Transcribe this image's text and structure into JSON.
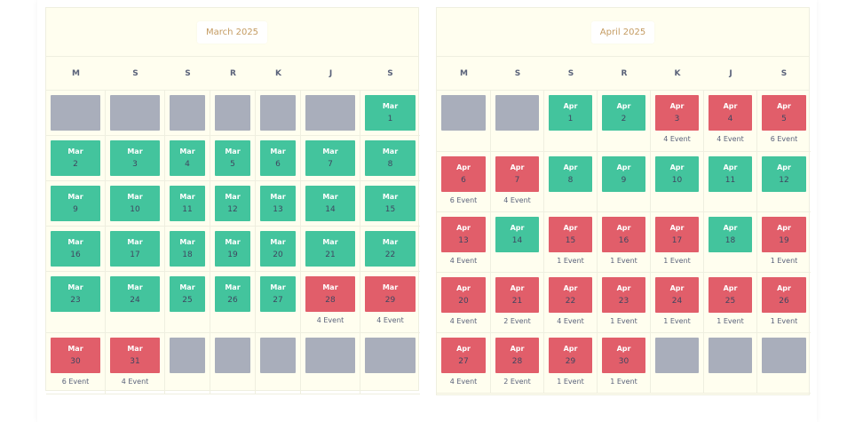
{
  "colors": {
    "available": "#43c49d",
    "busy": "#e15e6a",
    "empty": "#a9aebb",
    "title": "#c49b61"
  },
  "calendars": [
    {
      "title": "March 2025",
      "weekdays": [
        "M",
        "S",
        "S",
        "R",
        "K",
        "J",
        "S"
      ],
      "rows": [
        [
          {
            "empty": true
          },
          {
            "empty": true
          },
          {
            "empty": true
          },
          {
            "empty": true
          },
          {
            "empty": true
          },
          {
            "empty": true
          },
          {
            "mon": "Mar",
            "day": "1",
            "status": "green",
            "events": ""
          }
        ],
        [
          {
            "mon": "Mar",
            "day": "2",
            "status": "green",
            "events": ""
          },
          {
            "mon": "Mar",
            "day": "3",
            "status": "green",
            "events": ""
          },
          {
            "mon": "Mar",
            "day": "4",
            "status": "green",
            "events": ""
          },
          {
            "mon": "Mar",
            "day": "5",
            "status": "green",
            "events": ""
          },
          {
            "mon": "Mar",
            "day": "6",
            "status": "green",
            "events": ""
          },
          {
            "mon": "Mar",
            "day": "7",
            "status": "green",
            "events": ""
          },
          {
            "mon": "Mar",
            "day": "8",
            "status": "green",
            "events": ""
          }
        ],
        [
          {
            "mon": "Mar",
            "day": "9",
            "status": "green",
            "events": ""
          },
          {
            "mon": "Mar",
            "day": "10",
            "status": "green",
            "events": ""
          },
          {
            "mon": "Mar",
            "day": "11",
            "status": "green",
            "events": ""
          },
          {
            "mon": "Mar",
            "day": "12",
            "status": "green",
            "events": ""
          },
          {
            "mon": "Mar",
            "day": "13",
            "status": "green",
            "events": ""
          },
          {
            "mon": "Mar",
            "day": "14",
            "status": "green",
            "events": ""
          },
          {
            "mon": "Mar",
            "day": "15",
            "status": "green",
            "events": ""
          }
        ],
        [
          {
            "mon": "Mar",
            "day": "16",
            "status": "green",
            "events": ""
          },
          {
            "mon": "Mar",
            "day": "17",
            "status": "green",
            "events": ""
          },
          {
            "mon": "Mar",
            "day": "18",
            "status": "green",
            "events": ""
          },
          {
            "mon": "Mar",
            "day": "19",
            "status": "green",
            "events": ""
          },
          {
            "mon": "Mar",
            "day": "20",
            "status": "green",
            "events": ""
          },
          {
            "mon": "Mar",
            "day": "21",
            "status": "green",
            "events": ""
          },
          {
            "mon": "Mar",
            "day": "22",
            "status": "green",
            "events": ""
          }
        ],
        [
          {
            "mon": "Mar",
            "day": "23",
            "status": "green",
            "events": ""
          },
          {
            "mon": "Mar",
            "day": "24",
            "status": "green",
            "events": ""
          },
          {
            "mon": "Mar",
            "day": "25",
            "status": "green",
            "events": ""
          },
          {
            "mon": "Mar",
            "day": "26",
            "status": "green",
            "events": ""
          },
          {
            "mon": "Mar",
            "day": "27",
            "status": "green",
            "events": ""
          },
          {
            "mon": "Mar",
            "day": "28",
            "status": "red",
            "events": "4 Event"
          },
          {
            "mon": "Mar",
            "day": "29",
            "status": "red",
            "events": "4 Event"
          }
        ],
        [
          {
            "mon": "Mar",
            "day": "30",
            "status": "red",
            "events": "6 Event"
          },
          {
            "mon": "Mar",
            "day": "31",
            "status": "red",
            "events": "4 Event"
          },
          {
            "empty": true
          },
          {
            "empty": true
          },
          {
            "empty": true
          },
          {
            "empty": true
          },
          {
            "empty": true
          }
        ]
      ]
    },
    {
      "title": "April 2025",
      "weekdays": [
        "M",
        "S",
        "S",
        "R",
        "K",
        "J",
        "S"
      ],
      "rows": [
        [
          {
            "empty": true
          },
          {
            "empty": true
          },
          {
            "mon": "Apr",
            "day": "1",
            "status": "green",
            "events": ""
          },
          {
            "mon": "Apr",
            "day": "2",
            "status": "green",
            "events": ""
          },
          {
            "mon": "Apr",
            "day": "3",
            "status": "red",
            "events": "4 Event"
          },
          {
            "mon": "Apr",
            "day": "4",
            "status": "red",
            "events": "4 Event"
          },
          {
            "mon": "Apr",
            "day": "5",
            "status": "red",
            "events": "6 Event"
          }
        ],
        [
          {
            "mon": "Apr",
            "day": "6",
            "status": "red",
            "events": "6 Event"
          },
          {
            "mon": "Apr",
            "day": "7",
            "status": "red",
            "events": "4 Event"
          },
          {
            "mon": "Apr",
            "day": "8",
            "status": "green",
            "events": ""
          },
          {
            "mon": "Apr",
            "day": "9",
            "status": "green",
            "events": ""
          },
          {
            "mon": "Apr",
            "day": "10",
            "status": "green",
            "events": ""
          },
          {
            "mon": "Apr",
            "day": "11",
            "status": "green",
            "events": ""
          },
          {
            "mon": "Apr",
            "day": "12",
            "status": "green",
            "events": ""
          }
        ],
        [
          {
            "mon": "Apr",
            "day": "13",
            "status": "red",
            "events": "4 Event"
          },
          {
            "mon": "Apr",
            "day": "14",
            "status": "green",
            "events": ""
          },
          {
            "mon": "Apr",
            "day": "15",
            "status": "red",
            "events": "1 Event"
          },
          {
            "mon": "Apr",
            "day": "16",
            "status": "red",
            "events": "1 Event"
          },
          {
            "mon": "Apr",
            "day": "17",
            "status": "red",
            "events": "1 Event"
          },
          {
            "mon": "Apr",
            "day": "18",
            "status": "green",
            "events": ""
          },
          {
            "mon": "Apr",
            "day": "19",
            "status": "red",
            "events": "1 Event"
          }
        ],
        [
          {
            "mon": "Apr",
            "day": "20",
            "status": "red",
            "events": "4 Event"
          },
          {
            "mon": "Apr",
            "day": "21",
            "status": "red",
            "events": "2 Event"
          },
          {
            "mon": "Apr",
            "day": "22",
            "status": "red",
            "events": "4 Event"
          },
          {
            "mon": "Apr",
            "day": "23",
            "status": "red",
            "events": "1 Event"
          },
          {
            "mon": "Apr",
            "day": "24",
            "status": "red",
            "events": "1 Event"
          },
          {
            "mon": "Apr",
            "day": "25",
            "status": "red",
            "events": "1 Event"
          },
          {
            "mon": "Apr",
            "day": "26",
            "status": "red",
            "events": "1 Event"
          }
        ],
        [
          {
            "mon": "Apr",
            "day": "27",
            "status": "red",
            "events": "4 Event"
          },
          {
            "mon": "Apr",
            "day": "28",
            "status": "red",
            "events": "2 Event"
          },
          {
            "mon": "Apr",
            "day": "29",
            "status": "red",
            "events": "1 Event"
          },
          {
            "mon": "Apr",
            "day": "30",
            "status": "red",
            "events": "1 Event"
          },
          {
            "empty": true
          },
          {
            "empty": true
          },
          {
            "empty": true
          }
        ]
      ]
    }
  ]
}
